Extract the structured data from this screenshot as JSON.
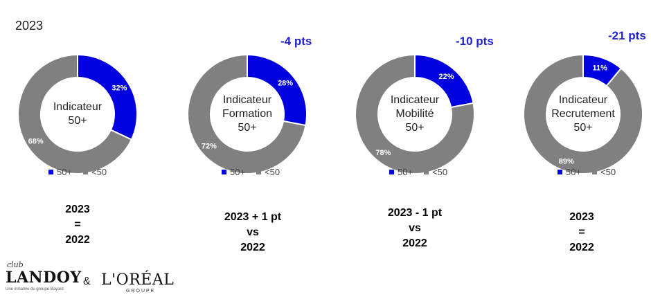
{
  "header": {
    "year": "2023"
  },
  "colors": {
    "blue": "#0000e0",
    "grey": "#808080",
    "delta": "#1f1fd6"
  },
  "legend": {
    "first": "50+",
    "second": "<50"
  },
  "chart_data": [
    {
      "type": "pie",
      "title": "Indicateur 50+",
      "center_lines": [
        "Indicateur",
        "50+"
      ],
      "delta": "",
      "slices": [
        {
          "label": "50+",
          "value": 32,
          "text": "32%"
        },
        {
          "label": "<50",
          "value": 68,
          "text": "68%"
        }
      ],
      "comparison": [
        "2023",
        "=",
        "2022"
      ]
    },
    {
      "type": "pie",
      "title": "Indicateur Formation 50+",
      "center_lines": [
        "Indicateur",
        "Formation",
        "50+"
      ],
      "delta": "-4 pts",
      "slices": [
        {
          "label": "50+",
          "value": 28,
          "text": "28%"
        },
        {
          "label": "<50",
          "value": 72,
          "text": "72%"
        }
      ],
      "comparison": [
        "2023 + 1 pt",
        "vs",
        "2022"
      ]
    },
    {
      "type": "pie",
      "title": "Indicateur Mobilité 50+",
      "center_lines": [
        "Indicateur",
        "Mobilité",
        "50+"
      ],
      "delta": "-10 pts",
      "slices": [
        {
          "label": "50+",
          "value": 22,
          "text": "22%"
        },
        {
          "label": "<50",
          "value": 78,
          "text": "78%"
        }
      ],
      "comparison": [
        "2023 - 1 pt",
        "vs",
        "2022"
      ]
    },
    {
      "type": "pie",
      "title": "Indicateur Recrutement 50+",
      "center_lines": [
        "Indicateur",
        "Recrutement",
        "50+"
      ],
      "delta": "-21 pts",
      "slices": [
        {
          "label": "50+",
          "value": 11,
          "text": "11%"
        },
        {
          "label": "<50",
          "value": 89,
          "text": "89%"
        }
      ],
      "comparison": [
        "2023",
        "=",
        "2022"
      ]
    }
  ],
  "footer": {
    "club": "club",
    "landoy": "LANDOY",
    "landoy_tagline": "Une initiative du groupe Bayard",
    "ampersand": "&",
    "loreal": "L'ORÉAL",
    "groupe": "GROUPE"
  }
}
